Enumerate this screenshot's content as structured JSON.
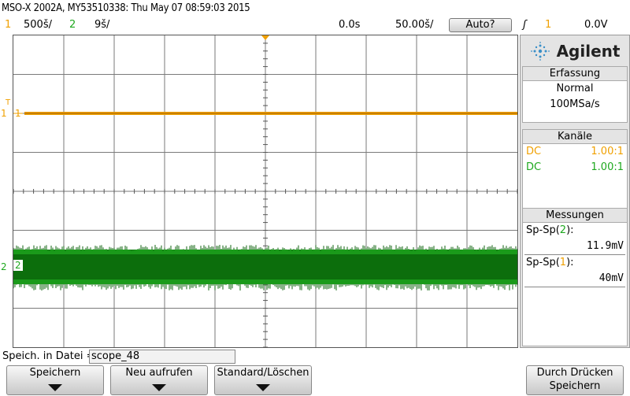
{
  "title": "MSO-X 2002A, MY53510338: Thu May 07 08:59:03 2015",
  "status": {
    "ch1_num": "1",
    "ch1_scale": "500š/",
    "ch2_num": "2",
    "ch2_scale": "9š/",
    "time_offset": "0.0s",
    "timebase": "50.00š/",
    "auto_label": "Auto?",
    "trig_symbol": "ʃ",
    "trig_ch": "1",
    "trig_level": "0.0V"
  },
  "markers": {
    "ch1_label": "1",
    "ch2_label": "2",
    "ch1_ref": "1",
    "ch2_ref": "2",
    "trig_t": "T"
  },
  "side": {
    "logo_text": "Agilent",
    "acq_title": "Erfassung",
    "acq_mode": "Normal",
    "acq_rate": "100MSa/s",
    "ch_title": "Kanäle",
    "ch1_coupling": "DC",
    "ch1_probe": "1.00:1",
    "ch2_coupling": "DC",
    "ch2_probe": "1.00:1",
    "meas_title": "Messungen",
    "meas1_label": "Sp-Sp(",
    "meas1_ch": "2",
    "meas1_close": "):",
    "meas1_value": "11.9mV",
    "meas2_label": "Sp-Sp(",
    "meas2_ch": "1",
    "meas2_close": "):",
    "meas2_value": "40mV"
  },
  "bottom": {
    "file_label": "Speich. in Datei =",
    "file_value": "scope_48",
    "key1": "Speichern",
    "key2": "Neu aufrufen",
    "key3": "Standard/Löschen",
    "key4_line1": "Durch Drücken",
    "key4_line2": "Speichern"
  },
  "colors": {
    "ch1": "#f0a000",
    "ch2": "#1ea81e"
  }
}
